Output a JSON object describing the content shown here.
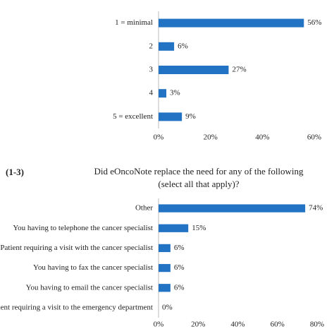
{
  "chart_data": [
    {
      "type": "bar",
      "orientation": "horizontal",
      "categories": [
        "1 = minimal",
        "2",
        "3",
        "4",
        "5 = excellent"
      ],
      "values": [
        56,
        6,
        27,
        3,
        9
      ],
      "value_labels": [
        "56%",
        "6%",
        "27%",
        "3%",
        "9%"
      ],
      "color": "#2273c3",
      "xlim": [
        0,
        60
      ],
      "xticks": [
        {
          "value": 0,
          "label": "0%"
        },
        {
          "value": 20,
          "label": "20%"
        },
        {
          "value": 40,
          "label": "40%"
        },
        {
          "value": 60,
          "label": "60%"
        }
      ],
      "grid": false
    },
    {
      "type": "bar",
      "orientation": "horizontal",
      "label": "(1-3)",
      "title": [
        "Did eOncoNote replace the need for any of the following",
        "(select all that apply)?"
      ],
      "categories": [
        "Other",
        "You having to telephone the cancer specialist",
        "Patient requiring a visit with the cancer specialist",
        "You having to fax the cancer specialist",
        "You having to email the cancer specialist",
        "Patient requiring a visit to the emergency department"
      ],
      "values": [
        74,
        15,
        6,
        6,
        6,
        0
      ],
      "value_labels": [
        "74%",
        "15%",
        "6%",
        "6%",
        "6%",
        "0%"
      ],
      "color": "#2273c3",
      "xlim": [
        0,
        80
      ],
      "xticks": [
        {
          "value": 0,
          "label": "0%"
        },
        {
          "value": 20,
          "label": "20%"
        },
        {
          "value": 40,
          "label": "40%"
        },
        {
          "value": 60,
          "label": "60%"
        },
        {
          "value": 80,
          "label": "80%"
        }
      ],
      "grid": false
    }
  ]
}
